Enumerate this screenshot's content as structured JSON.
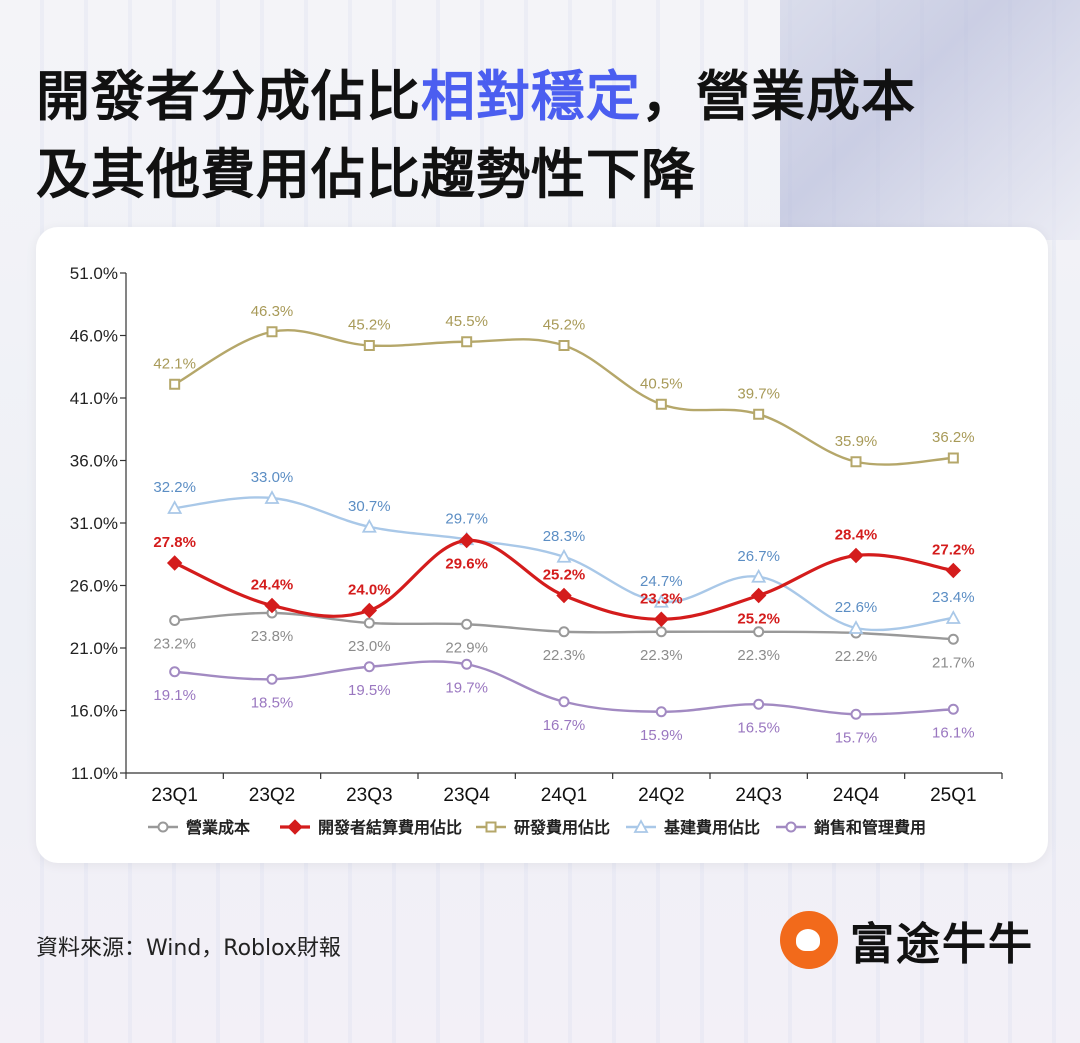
{
  "title": {
    "part1": "開發者分成佔比",
    "highlight": "相對穩定",
    "part2": "，營業成本",
    "line2": "及其他費用佔比趨勢性下降"
  },
  "source": "資料來源：Wind，Roblox財報",
  "logo": {
    "text": "富途牛牛"
  },
  "colors": {
    "highlight": "#4b5ef0",
    "opex": "#999999",
    "dev": "#d41c1c",
    "rnd": "#b5a76a",
    "infra": "#a9c8e8",
    "sga": "#a28ac2"
  },
  "chart_data": {
    "type": "line",
    "categories": [
      "23Q1",
      "23Q2",
      "23Q3",
      "23Q4",
      "24Q1",
      "24Q2",
      "24Q3",
      "24Q4",
      "25Q1"
    ],
    "ylim": [
      11.0,
      51.0
    ],
    "yticks": [
      "11.0%",
      "16.0%",
      "21.0%",
      "26.0%",
      "31.0%",
      "36.0%",
      "41.0%",
      "46.0%",
      "51.0%"
    ],
    "ytick_values": [
      11,
      16,
      21,
      26,
      31,
      36,
      41,
      46,
      51
    ],
    "legend_position": "bottom",
    "series": [
      {
        "key": "opex",
        "name": "營業成本",
        "marker": "circle",
        "color": "#999999",
        "labelColor": "#8c8c8c",
        "labelPos": "below",
        "values": [
          23.2,
          23.8,
          23.0,
          22.9,
          22.3,
          22.3,
          22.3,
          22.2,
          21.7
        ],
        "labels": [
          "23.2%",
          "23.8%",
          "23.0%",
          "22.9%",
          "22.3%",
          "22.3%",
          "22.3%",
          "22.2%",
          "21.7%"
        ]
      },
      {
        "key": "dev",
        "name": "開發者結算費用佔比",
        "marker": "diamond",
        "color": "#d41c1c",
        "labelColor": "#d41c1c",
        "labelPos": "mixed",
        "bold": true,
        "values": [
          27.8,
          24.4,
          24.0,
          29.6,
          25.2,
          23.3,
          25.2,
          28.4,
          27.2
        ],
        "labels": [
          "27.8%",
          "24.4%",
          "24.0%",
          "29.6%",
          "25.2%",
          "23.3%",
          "25.2%",
          "28.4%",
          "27.2%"
        ]
      },
      {
        "key": "rnd",
        "name": "研發費用佔比",
        "marker": "square",
        "color": "#b5a76a",
        "labelColor": "#a89a58",
        "labelPos": "above",
        "values": [
          42.1,
          46.3,
          45.2,
          45.5,
          45.2,
          40.5,
          39.7,
          35.9,
          36.2
        ],
        "labels": [
          "42.1%",
          "46.3%",
          "45.2%",
          "45.5%",
          "45.2%",
          "40.5%",
          "39.7%",
          "35.9%",
          "36.2%"
        ]
      },
      {
        "key": "infra",
        "name": "基建費用佔比",
        "marker": "triangle",
        "color": "#a9c8e8",
        "labelColor": "#5c8ec4",
        "labelPos": "above",
        "values": [
          32.2,
          33.0,
          30.7,
          29.7,
          28.3,
          24.7,
          26.7,
          22.6,
          23.4
        ],
        "labels": [
          "32.2%",
          "33.0%",
          "30.7%",
          "29.7%",
          "28.3%",
          "24.7%",
          "26.7%",
          "22.6%",
          "23.4%"
        ]
      },
      {
        "key": "sga",
        "name": "銷售和管理費用",
        "marker": "circle",
        "color": "#a28ac2",
        "labelColor": "#9a77c0",
        "labelPos": "below",
        "values": [
          19.1,
          18.5,
          19.5,
          19.7,
          16.7,
          15.9,
          16.5,
          15.7,
          16.1
        ],
        "labels": [
          "19.1%",
          "18.5%",
          "19.5%",
          "19.7%",
          "16.7%",
          "15.9%",
          "16.5%",
          "15.7%",
          "16.1%"
        ]
      }
    ]
  }
}
